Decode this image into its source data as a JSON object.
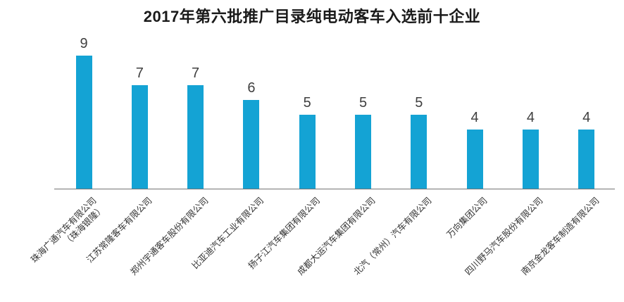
{
  "title": "2017年第六批推广目录纯电动客车入选前十企业",
  "colors": {
    "bar": "#14a3d4",
    "axis_line": "#737373",
    "value_label": "#3f3f3f",
    "tick_label": "#333333",
    "title": "#1a1a1a",
    "background": "#ffffff"
  },
  "chart_data": {
    "type": "bar",
    "title": "2017年第六批推广目录纯电动客车入选前十企业",
    "categories": [
      "珠海广通汽车有限公司\n（珠海银隆）",
      "江苏常隆客车有限公司",
      "郑州宇通客车股份有限公司",
      "比亚迪汽车工业有限公司",
      "扬子江汽车集团有限公司",
      "成都大运汽车集团有限公司",
      "北汽（常州）汽车有限公司",
      "万向集团公司",
      "四川野马汽车股份有限公司",
      "南京金龙客车制造有限公司"
    ],
    "values": [
      9,
      7,
      7,
      6,
      5,
      5,
      5,
      4,
      4,
      4
    ],
    "xlabel": "",
    "ylabel": "",
    "ylim": [
      0,
      9
    ],
    "grid": false,
    "legend": false,
    "y_axis_shown": false,
    "value_labels_shown": true,
    "tick_label_rotation_deg": 45
  }
}
